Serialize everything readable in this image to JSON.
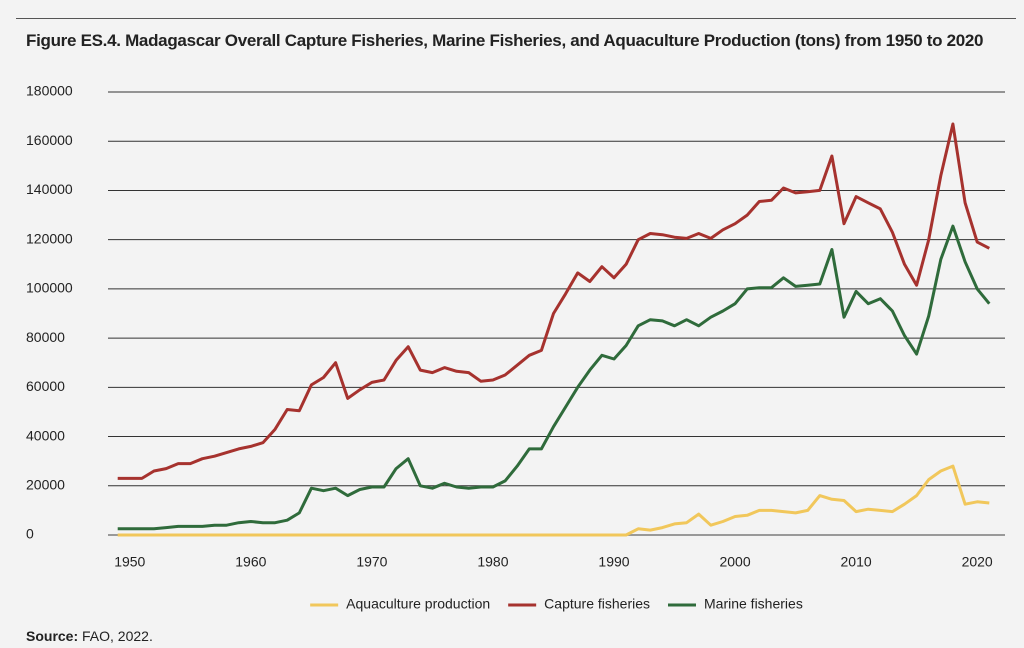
{
  "chart_data": {
    "type": "line",
    "title": "Figure ES.4. Madagascar Overall Capture Fisheries, Marine Fisheries, and Aquaculture Production (tons) from 1950 to 2020",
    "source_label": "Source:",
    "source_text": "FAO, 2022.",
    "x": [
      1949,
      1950,
      1951,
      1952,
      1953,
      1954,
      1955,
      1956,
      1957,
      1958,
      1959,
      1960,
      1961,
      1962,
      1963,
      1964,
      1965,
      1966,
      1967,
      1968,
      1969,
      1970,
      1971,
      1972,
      1973,
      1974,
      1975,
      1976,
      1977,
      1978,
      1979,
      1980,
      1981,
      1982,
      1983,
      1984,
      1985,
      1986,
      1987,
      1988,
      1989,
      1990,
      1991,
      1992,
      1993,
      1994,
      1995,
      1996,
      1997,
      1998,
      1999,
      2000,
      2001,
      2002,
      2003,
      2004,
      2005,
      2006,
      2007,
      2008,
      2009,
      2010,
      2011,
      2012,
      2013,
      2014,
      2015,
      2016,
      2017,
      2018,
      2019,
      2020,
      2021
    ],
    "series": [
      {
        "name": "Aquaculture production",
        "color": "#f1c75b",
        "values": [
          0,
          0,
          0,
          0,
          0,
          0,
          0,
          0,
          0,
          0,
          0,
          0,
          0,
          0,
          0,
          0,
          0,
          0,
          0,
          0,
          0,
          0,
          0,
          0,
          0,
          0,
          0,
          0,
          0,
          0,
          0,
          0,
          0,
          0,
          0,
          0,
          0,
          0,
          0,
          0,
          0,
          0,
          0,
          2500,
          2000,
          3000,
          4500,
          5000,
          8500,
          4000,
          5500,
          7500,
          8000,
          10000,
          10000,
          9500,
          9000,
          10000,
          16000,
          14500,
          14000,
          9500,
          10500,
          10000,
          9500,
          12500,
          16000,
          22500,
          26000,
          28000,
          12500,
          13500,
          13000
        ]
      },
      {
        "name": "Capture fisheries",
        "color": "#a6322e",
        "values": [
          23000,
          23000,
          23000,
          26000,
          27000,
          29000,
          29000,
          31000,
          32000,
          33500,
          35000,
          36000,
          37500,
          43000,
          51000,
          50500,
          61000,
          64000,
          70000,
          55500,
          59000,
          62000,
          63000,
          71000,
          76500,
          67000,
          66000,
          68000,
          66500,
          66000,
          62500,
          63000,
          65000,
          69000,
          73000,
          75000,
          90000,
          98000,
          106500,
          103000,
          109000,
          104500,
          110000,
          120000,
          122500,
          122000,
          121000,
          120500,
          122500,
          120500,
          124000,
          126500,
          130000,
          135500,
          136000,
          141000,
          139000,
          139500,
          140000,
          154000,
          126500,
          137500,
          135000,
          132500,
          123000,
          110000,
          101500,
          120000,
          146000,
          167000,
          135000,
          119000,
          116500
        ]
      },
      {
        "name": "Marine fisheries",
        "color": "#2f6b3b",
        "values": [
          2500,
          2500,
          2500,
          2500,
          3000,
          3500,
          3500,
          3500,
          4000,
          4000,
          5000,
          5500,
          5000,
          5000,
          6000,
          9000,
          19000,
          18000,
          19000,
          16000,
          18500,
          19500,
          19500,
          27000,
          31000,
          20000,
          19000,
          21000,
          19500,
          19000,
          19500,
          19500,
          22000,
          28000,
          35000,
          35000,
          44000,
          52000,
          60000,
          67000,
          73000,
          71500,
          77000,
          85000,
          87500,
          87000,
          85000,
          87500,
          85000,
          88500,
          91000,
          94000,
          100000,
          100500,
          100500,
          104500,
          101000,
          101500,
          102000,
          116000,
          88500,
          99000,
          94000,
          96000,
          91000,
          81000,
          73500,
          89000,
          112000,
          125500,
          111000,
          100000,
          94000
        ]
      }
    ],
    "xlim": [
      1948.2,
      2022.3
    ],
    "xticks": [
      1950,
      1960,
      1970,
      1980,
      1990,
      2000,
      2010,
      2020
    ],
    "ylim": [
      0,
      180000
    ],
    "yticks": [
      0,
      20000,
      40000,
      60000,
      80000,
      100000,
      120000,
      140000,
      160000,
      180000
    ],
    "grid": true,
    "legend": "bottom"
  }
}
